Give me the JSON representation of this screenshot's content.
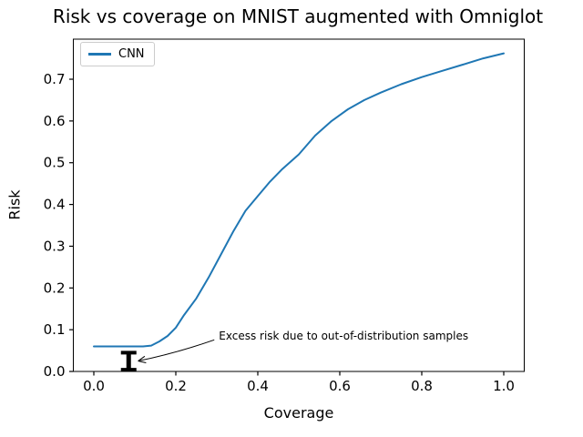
{
  "title": "Risk vs coverage on MNIST augmented with Omniglot",
  "chart_data": {
    "type": "line",
    "title": "Risk vs coverage on MNIST augmented with Omniglot",
    "xlabel": "Coverage",
    "ylabel": "Risk",
    "xlim": [
      -0.05,
      1.05
    ],
    "ylim": [
      0.0,
      0.796
    ],
    "xticks": [
      0.0,
      0.2,
      0.4,
      0.6,
      0.8,
      1.0
    ],
    "yticks": [
      0.0,
      0.1,
      0.2,
      0.3,
      0.4,
      0.5,
      0.6,
      0.7
    ],
    "grid": false,
    "legend": {
      "position": "upper left",
      "entries": [
        {
          "label": "CNN",
          "color": "#1f77b4"
        }
      ]
    },
    "series": [
      {
        "name": "CNN",
        "color": "#1f77b4",
        "x": [
          0.0,
          0.04,
          0.08,
          0.12,
          0.14,
          0.16,
          0.18,
          0.2,
          0.22,
          0.25,
          0.28,
          0.31,
          0.34,
          0.37,
          0.4,
          0.43,
          0.46,
          0.5,
          0.54,
          0.58,
          0.62,
          0.66,
          0.7,
          0.75,
          0.8,
          0.85,
          0.9,
          0.95,
          1.0
        ],
        "y": [
          0.06,
          0.06,
          0.06,
          0.06,
          0.062,
          0.072,
          0.085,
          0.105,
          0.135,
          0.175,
          0.225,
          0.28,
          0.335,
          0.385,
          0.42,
          0.455,
          0.485,
          0.52,
          0.565,
          0.6,
          0.628,
          0.65,
          0.668,
          0.688,
          0.705,
          0.72,
          0.735,
          0.75,
          0.762
        ]
      }
    ],
    "errorbar": {
      "x": 0.085,
      "y_top": 0.045,
      "y_bottom": 0.004,
      "color": "#000000"
    },
    "annotation": {
      "text": "Excess risk due to out-of-distribution samples",
      "text_xy": [
        0.305,
        0.08
      ],
      "arrow_tip_xy": [
        0.108,
        0.025
      ],
      "color": "#000000"
    }
  }
}
